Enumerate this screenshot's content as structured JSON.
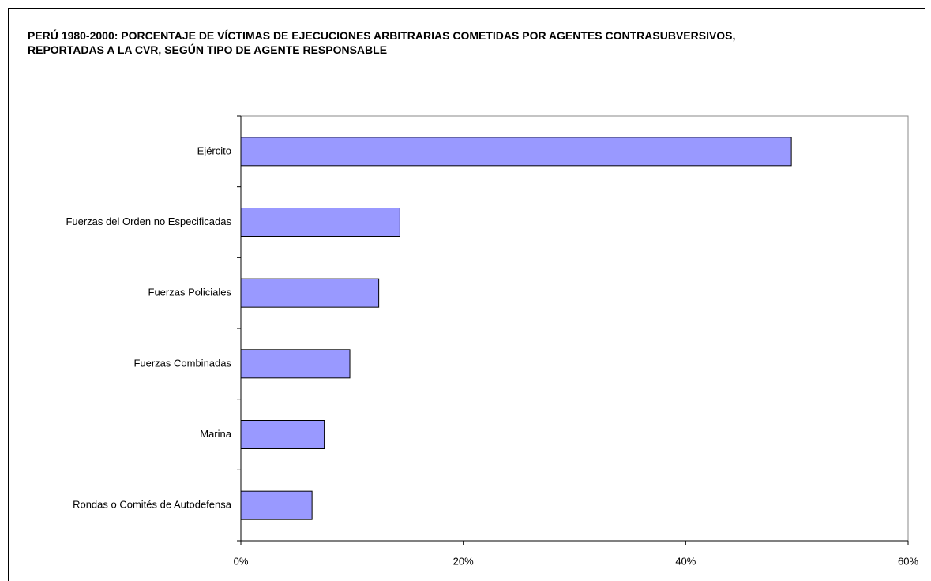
{
  "chart_data": {
    "type": "bar",
    "orientation": "horizontal",
    "title": "PERÚ 1980-2000: PORCENTAJE DE VÍCTIMAS DE EJECUCIONES ARBITRARIAS COMETIDAS POR AGENTES CONTRASUBVERSIVOS, REPORTADAS A LA CVR, SEGÚN TIPO DE AGENTE RESPONSABLE",
    "categories": [
      "Ejército",
      "Fuerzas del Orden no Especificadas",
      "Fuerzas Policiales",
      "Fuerzas Combinadas",
      "Marina",
      "Rondas o Comités de Autodefensa"
    ],
    "values": [
      49.5,
      14.3,
      12.4,
      9.8,
      7.5,
      6.4
    ],
    "color": "#9999ff",
    "xlim": [
      0,
      60
    ],
    "xticks": [
      {
        "value": 0,
        "label": "0%"
      },
      {
        "value": 20,
        "label": "20%"
      },
      {
        "value": 40,
        "label": "40%"
      },
      {
        "value": 60,
        "label": "60%"
      }
    ],
    "grid": false
  }
}
